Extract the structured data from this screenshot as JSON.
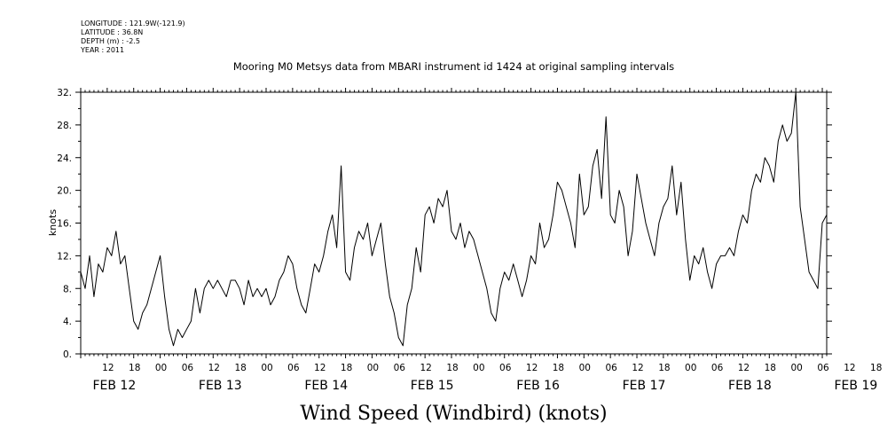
{
  "header": {
    "longitude": "LONGITUDE : 121.9W(-121.9)",
    "latitude": "LATITUDE : 36.8N",
    "depth": "DEPTH (m) : -2.5",
    "year": "YEAR : 2011"
  },
  "chart_data": {
    "type": "line",
    "title": "Mooring M0 Metsys data from MBARI instrument id 1424 at original sampling intervals",
    "xlabel": "Wind Speed (Windbird) (knots)",
    "ylabel": "knots",
    "ylim": [
      0,
      32
    ],
    "yticks": [
      "0.",
      "4.",
      "8.",
      "12.",
      "16.",
      "20.",
      "24.",
      "28.",
      "32."
    ],
    "xlim_hours": [
      0,
      169
    ],
    "hour_ticks": [
      "12",
      "18",
      "00",
      "06",
      "12",
      "18",
      "00",
      "06",
      "12",
      "18",
      "00",
      "06",
      "12",
      "18",
      "00",
      "06",
      "12",
      "18",
      "00",
      "06",
      "12",
      "18",
      "00",
      "06",
      "12",
      "18",
      "00",
      "06",
      "12",
      "18",
      "00",
      "06"
    ],
    "day_labels": [
      "FEB 12",
      "FEB 13",
      "FEB 14",
      "FEB 15",
      "FEB 16",
      "FEB 17",
      "FEB 18",
      "FEB 19"
    ],
    "x_hours": [
      0,
      1,
      2,
      3,
      4,
      5,
      6,
      7,
      8,
      9,
      10,
      11,
      12,
      13,
      14,
      15,
      16,
      17,
      18,
      19,
      20,
      21,
      22,
      23,
      24,
      25,
      26,
      27,
      28,
      29,
      30,
      31,
      32,
      33,
      34,
      35,
      36,
      37,
      38,
      39,
      40,
      41,
      42,
      43,
      44,
      45,
      46,
      47,
      48,
      49,
      50,
      51,
      52,
      53,
      54,
      55,
      56,
      57,
      58,
      59,
      60,
      61,
      62,
      63,
      64,
      65,
      66,
      67,
      68,
      69,
      70,
      71,
      72,
      73,
      74,
      75,
      76,
      77,
      78,
      79,
      80,
      81,
      82,
      83,
      84,
      85,
      86,
      87,
      88,
      89,
      90,
      91,
      92,
      93,
      94,
      95,
      96,
      97,
      98,
      99,
      100,
      101,
      102,
      103,
      104,
      105,
      106,
      107,
      108,
      109,
      110,
      111,
      112,
      113,
      114,
      115,
      116,
      117,
      118,
      119,
      120,
      121,
      122,
      123,
      124,
      125,
      126,
      127,
      128,
      129,
      130,
      131,
      132,
      133,
      134,
      135,
      136,
      137,
      138,
      139,
      140,
      141,
      142,
      143,
      144,
      145,
      146,
      147,
      148,
      149,
      150,
      151,
      152,
      153,
      154,
      155,
      156,
      157,
      158,
      159,
      160,
      161,
      162,
      163,
      164,
      165,
      166,
      167,
      168,
      169
    ],
    "series": [
      {
        "values": [
          10,
          8,
          12,
          7,
          11,
          10,
          13,
          12,
          15,
          11,
          12,
          8,
          4,
          3,
          5,
          6,
          8,
          10,
          12,
          7,
          3,
          1,
          3,
          2,
          3,
          4,
          8,
          5,
          8,
          9,
          8,
          9,
          8,
          7,
          9,
          9,
          8,
          6,
          9,
          7,
          8,
          7,
          8,
          6,
          7,
          9,
          10,
          12,
          11,
          8,
          6,
          5,
          8,
          11,
          10,
          12,
          15,
          17,
          13,
          23,
          10,
          9,
          13,
          15,
          14,
          16,
          12,
          14,
          16,
          11,
          7,
          5,
          2,
          1,
          6,
          8,
          13,
          10,
          17,
          18,
          16,
          19,
          18,
          20,
          15,
          14,
          16,
          13,
          15,
          14,
          12,
          10,
          8,
          5,
          4,
          8,
          10,
          9,
          11,
          9,
          7,
          9,
          12,
          11,
          16,
          13,
          14,
          17,
          21,
          20,
          18,
          16,
          13,
          22,
          17,
          18,
          23,
          25,
          19,
          29,
          17,
          16,
          20,
          18,
          12,
          15,
          22,
          19,
          16,
          14,
          12,
          16,
          18,
          19,
          23,
          17,
          21,
          14,
          9,
          12,
          11,
          13,
          10,
          8,
          11,
          12,
          12,
          13,
          12,
          15,
          17,
          16,
          20,
          22,
          21,
          24,
          23,
          21,
          26,
          28,
          26,
          27,
          32,
          18,
          14,
          10,
          9,
          8,
          16,
          17
        ],
        "color": "#000000"
      }
    ]
  }
}
